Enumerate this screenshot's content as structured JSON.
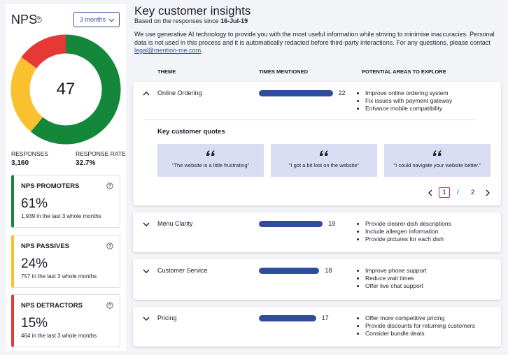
{
  "nps": {
    "title": "NPS",
    "period": "3 months",
    "score": 47,
    "responses": {
      "label": "RESPONSES",
      "value": "3,160"
    },
    "response_rate": {
      "label": "RESPONSE RATE",
      "value": "32.7%"
    },
    "segments": [
      {
        "name": "NPS PROMOTERS",
        "percent": 61,
        "percent_label": "61%",
        "note": "1,939 in the last 3 whole months",
        "color": "#14873a"
      },
      {
        "name": "NPS PASSIVES",
        "percent": 24,
        "percent_label": "24%",
        "note": "757 in the last 3 whole months",
        "color": "#fbc02d"
      },
      {
        "name": "NPS DETRACTORS",
        "percent": 15,
        "percent_label": "15%",
        "note": "464 in the last 3 whole months",
        "color": "#e53935"
      }
    ]
  },
  "insights": {
    "title": "Key customer insights",
    "subtitle": "Based on the responses since",
    "since": "16-Jul-19",
    "disclaimer": "We use generative AI technology to provide you with the most useful information while striving to minimise inaccuracies. Personal data is not used in this process and it is automatically redacted before third-party interactions. For any questions, please contact",
    "email": "legal@mention-me.com",
    "columns": [
      "THEME",
      "TIMES MENTIONED",
      "POTENTIAL AREAS TO EXPLORE"
    ],
    "bar_color": "#2f4d9c",
    "themes": [
      {
        "name": "Online Ordering",
        "mentions": 22,
        "areas": [
          "Improve online ordering system",
          "Fix issues with payment gateway",
          "Enhance mobile compatibility"
        ],
        "quotes_panel": {
          "title": "Key customer quotes",
          "quotes": [
            "\"The website is a little frustrating\"",
            "\"I got a bit lost on the website\"",
            "\"I could navigate your website better.\""
          ],
          "page": 1,
          "separator": "/",
          "pages": 2
        }
      },
      {
        "name": "Menu Clarity",
        "mentions": 19,
        "areas": [
          "Provide clearer dish descriptions",
          "Include allergen information",
          "Provide pictures for each dish"
        ]
      },
      {
        "name": "Customer Service",
        "mentions": 18,
        "areas": [
          "Improve phone support",
          "Reduce wait times",
          "Offer live chat support"
        ]
      },
      {
        "name": "Pricing",
        "mentions": 17,
        "areas": [
          "Offer more competitive pricing",
          "Provide discounts for returning customers",
          "Consider bundle deals"
        ]
      }
    ]
  }
}
